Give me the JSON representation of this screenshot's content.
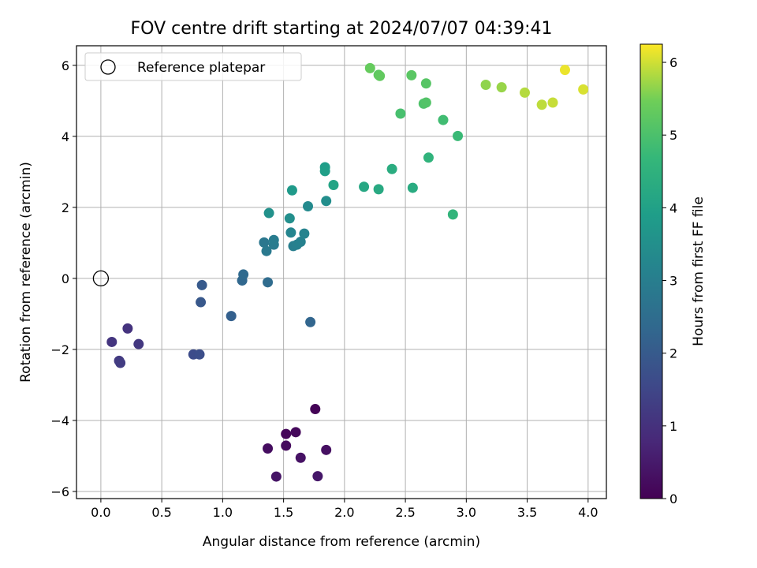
{
  "chart_data": {
    "type": "scatter",
    "title": "FOV centre drift starting at 2024/07/07 04:39:41",
    "xlabel": "Angular distance from reference (arcmin)",
    "ylabel": "Rotation from reference (arcmin)",
    "xlim": [
      -0.2,
      4.15
    ],
    "ylim": [
      -6.2,
      6.55
    ],
    "xticks": [
      0.0,
      0.5,
      1.0,
      1.5,
      2.0,
      2.5,
      3.0,
      3.5,
      4.0
    ],
    "xtick_labels": [
      "0.0",
      "0.5",
      "1.0",
      "1.5",
      "2.0",
      "2.5",
      "3.0",
      "3.5",
      "4.0"
    ],
    "yticks": [
      -6,
      -4,
      -2,
      0,
      2,
      4,
      6
    ],
    "ytick_labels": [
      "−6",
      "−4",
      "−2",
      "0",
      "2",
      "4",
      "6"
    ],
    "grid": true,
    "legend": {
      "position": "top-left",
      "entries": [
        {
          "label": "Reference platepar",
          "marker": "hollow-circle",
          "x": 0.0,
          "y": 0.0
        }
      ]
    },
    "colorbar": {
      "label": "Hours from first FF file",
      "colormap": "viridis",
      "range": [
        0,
        6.25
      ],
      "ticks": [
        0,
        1,
        2,
        3,
        4,
        5,
        6
      ],
      "tick_labels": [
        "0",
        "1",
        "2",
        "3",
        "4",
        "5",
        "6"
      ]
    },
    "points": [
      {
        "x": 1.76,
        "y": -3.68,
        "c": 0.05
      },
      {
        "x": 1.52,
        "y": -4.38,
        "c": 0.1
      },
      {
        "x": 1.6,
        "y": -4.33,
        "c": 0.15
      },
      {
        "x": 1.52,
        "y": -4.71,
        "c": 0.2
      },
      {
        "x": 1.37,
        "y": -4.79,
        "c": 0.25
      },
      {
        "x": 1.85,
        "y": -4.83,
        "c": 0.3
      },
      {
        "x": 1.64,
        "y": -5.05,
        "c": 0.35
      },
      {
        "x": 1.44,
        "y": -5.58,
        "c": 0.4
      },
      {
        "x": 1.78,
        "y": -5.57,
        "c": 0.45
      },
      {
        "x": 0.22,
        "y": -1.41,
        "c": 1.05
      },
      {
        "x": 0.09,
        "y": -1.79,
        "c": 1.1
      },
      {
        "x": 0.31,
        "y": -1.85,
        "c": 1.15
      },
      {
        "x": 0.15,
        "y": -2.32,
        "c": 1.2
      },
      {
        "x": 0.16,
        "y": -2.38,
        "c": 1.25
      },
      {
        "x": 0.76,
        "y": -2.14,
        "c": 1.65
      },
      {
        "x": 0.81,
        "y": -2.14,
        "c": 1.7
      },
      {
        "x": 0.82,
        "y": -0.67,
        "c": 1.95
      },
      {
        "x": 0.83,
        "y": -0.19,
        "c": 2.0
      },
      {
        "x": 1.07,
        "y": -1.06,
        "c": 2.15
      },
      {
        "x": 1.72,
        "y": -1.23,
        "c": 2.3
      },
      {
        "x": 1.16,
        "y": -0.06,
        "c": 2.35
      },
      {
        "x": 1.17,
        "y": 0.11,
        "c": 2.4
      },
      {
        "x": 1.37,
        "y": -0.11,
        "c": 2.45
      },
      {
        "x": 1.34,
        "y": 1.01,
        "c": 2.8
      },
      {
        "x": 1.36,
        "y": 0.77,
        "c": 2.85
      },
      {
        "x": 1.42,
        "y": 0.95,
        "c": 2.9
      },
      {
        "x": 1.42,
        "y": 1.08,
        "c": 2.95
      },
      {
        "x": 1.58,
        "y": 0.91,
        "c": 3.0
      },
      {
        "x": 1.61,
        "y": 0.95,
        "c": 3.05
      },
      {
        "x": 1.64,
        "y": 1.03,
        "c": 3.1
      },
      {
        "x": 1.67,
        "y": 1.26,
        "c": 3.15
      },
      {
        "x": 1.56,
        "y": 1.29,
        "c": 3.2
      },
      {
        "x": 1.7,
        "y": 2.03,
        "c": 3.35
      },
      {
        "x": 1.85,
        "y": 2.18,
        "c": 3.45
      },
      {
        "x": 1.55,
        "y": 1.69,
        "c": 3.5
      },
      {
        "x": 1.38,
        "y": 1.84,
        "c": 3.55
      },
      {
        "x": 1.57,
        "y": 2.48,
        "c": 3.8
      },
      {
        "x": 1.84,
        "y": 3.13,
        "c": 3.9
      },
      {
        "x": 1.84,
        "y": 3.02,
        "c": 3.95
      },
      {
        "x": 1.91,
        "y": 2.63,
        "c": 4.1
      },
      {
        "x": 2.16,
        "y": 2.58,
        "c": 4.2
      },
      {
        "x": 2.28,
        "y": 2.51,
        "c": 4.25
      },
      {
        "x": 2.56,
        "y": 2.55,
        "c": 4.3
      },
      {
        "x": 2.39,
        "y": 3.08,
        "c": 4.35
      },
      {
        "x": 2.69,
        "y": 3.4,
        "c": 4.55
      },
      {
        "x": 2.89,
        "y": 1.8,
        "c": 4.6
      },
      {
        "x": 2.93,
        "y": 4.01,
        "c": 4.75
      },
      {
        "x": 2.81,
        "y": 4.46,
        "c": 4.85
      },
      {
        "x": 2.46,
        "y": 4.64,
        "c": 4.95
      },
      {
        "x": 2.65,
        "y": 4.92,
        "c": 5.05
      },
      {
        "x": 2.67,
        "y": 4.95,
        "c": 5.1
      },
      {
        "x": 2.67,
        "y": 5.49,
        "c": 5.15
      },
      {
        "x": 2.55,
        "y": 5.72,
        "c": 5.2
      },
      {
        "x": 2.28,
        "y": 5.73,
        "c": 5.25
      },
      {
        "x": 2.29,
        "y": 5.7,
        "c": 5.3
      },
      {
        "x": 2.21,
        "y": 5.92,
        "c": 5.35
      },
      {
        "x": 3.16,
        "y": 5.45,
        "c": 5.65
      },
      {
        "x": 3.29,
        "y": 5.38,
        "c": 5.7
      },
      {
        "x": 3.48,
        "y": 5.23,
        "c": 5.85
      },
      {
        "x": 3.62,
        "y": 4.89,
        "c": 5.9
      },
      {
        "x": 3.71,
        "y": 4.95,
        "c": 5.95
      },
      {
        "x": 3.81,
        "y": 5.87,
        "c": 6.15
      },
      {
        "x": 3.96,
        "y": 5.32,
        "c": 6.05
      }
    ]
  }
}
